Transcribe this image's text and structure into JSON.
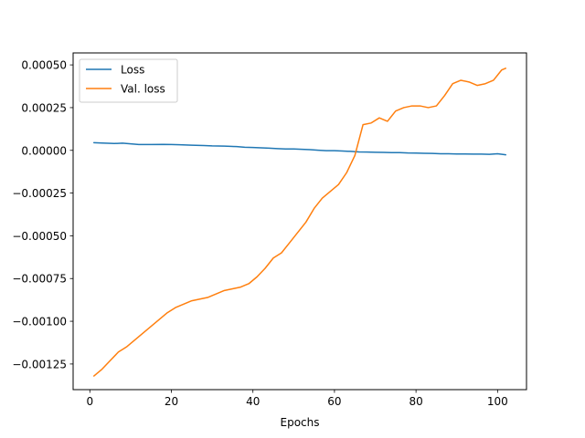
{
  "chart_data": {
    "type": "line",
    "title": "",
    "xlabel": "Epochs",
    "ylabel": "",
    "xlim": [
      -4.1,
      107.1
    ],
    "ylim": [
      -0.0014,
      0.00057
    ],
    "x_ticks": [
      0,
      20,
      40,
      60,
      80,
      100
    ],
    "x_tick_labels": [
      "0",
      "20",
      "40",
      "60",
      "80",
      "100"
    ],
    "y_ticks": [
      -0.00125,
      -0.001,
      -0.00075,
      -0.0005,
      -0.00025,
      0.0,
      0.00025,
      0.0005
    ],
    "y_tick_labels": [
      "−0.00125",
      "−0.00100",
      "−0.00075",
      "−0.00050",
      "−0.00025",
      "0.00000",
      "0.00025",
      "0.00050"
    ],
    "grid": false,
    "legend_position": "upper left",
    "series": [
      {
        "name": "Loss",
        "color": "#1f77b4",
        "points": [
          [
            1,
            4.5e-05
          ],
          [
            3,
            4.3e-05
          ],
          [
            6,
            4e-05
          ],
          [
            8,
            4.2e-05
          ],
          [
            10,
            3.8e-05
          ],
          [
            12,
            3.4e-05
          ],
          [
            15,
            3.4e-05
          ],
          [
            18,
            3.5e-05
          ],
          [
            20,
            3.4e-05
          ],
          [
            22,
            3.3e-05
          ],
          [
            25,
            3e-05
          ],
          [
            28,
            2.8e-05
          ],
          [
            30,
            2.6e-05
          ],
          [
            33,
            2.5e-05
          ],
          [
            36,
            2.2e-05
          ],
          [
            38,
            1.8e-05
          ],
          [
            40,
            1.7e-05
          ],
          [
            42,
            1.5e-05
          ],
          [
            44,
            1.3e-05
          ],
          [
            46,
            1e-05
          ],
          [
            48,
            8e-06
          ],
          [
            50,
            8e-06
          ],
          [
            52,
            6e-06
          ],
          [
            54,
            4e-06
          ],
          [
            56,
            1e-06
          ],
          [
            58,
            -2e-06
          ],
          [
            60,
            -2e-06
          ],
          [
            62,
            -4e-06
          ],
          [
            64,
            -6e-06
          ],
          [
            66,
            -9e-06
          ],
          [
            68,
            -1e-05
          ],
          [
            70,
            -1.1e-05
          ],
          [
            72,
            -1.2e-05
          ],
          [
            74,
            -1.3e-05
          ],
          [
            76,
            -1.3e-05
          ],
          [
            78,
            -1.5e-05
          ],
          [
            80,
            -1.6e-05
          ],
          [
            82,
            -1.7e-05
          ],
          [
            84,
            -1.8e-05
          ],
          [
            86,
            -2e-05
          ],
          [
            88,
            -2e-05
          ],
          [
            90,
            -2.1e-05
          ],
          [
            92,
            -2.1e-05
          ],
          [
            94,
            -2.2e-05
          ],
          [
            96,
            -2.2e-05
          ],
          [
            98,
            -2.3e-05
          ],
          [
            100,
            -2e-05
          ],
          [
            102,
            -2.6e-05
          ]
        ]
      },
      {
        "name": "Val. loss",
        "color": "#ff7f0e",
        "points": [
          [
            1,
            -0.00132
          ],
          [
            3,
            -0.00128
          ],
          [
            5,
            -0.00123
          ],
          [
            7,
            -0.00118
          ],
          [
            9,
            -0.00115
          ],
          [
            11,
            -0.00111
          ],
          [
            13,
            -0.00107
          ],
          [
            15,
            -0.00103
          ],
          [
            17,
            -0.00099
          ],
          [
            19,
            -0.00095
          ],
          [
            21,
            -0.00092
          ],
          [
            23,
            -0.0009
          ],
          [
            25,
            -0.00088
          ],
          [
            27,
            -0.00087
          ],
          [
            29,
            -0.00086
          ],
          [
            31,
            -0.00084
          ],
          [
            33,
            -0.00082
          ],
          [
            35,
            -0.00081
          ],
          [
            37,
            -0.0008
          ],
          [
            39,
            -0.00078
          ],
          [
            41,
            -0.00074
          ],
          [
            43,
            -0.00069
          ],
          [
            45,
            -0.00063
          ],
          [
            47,
            -0.0006
          ],
          [
            49,
            -0.00054
          ],
          [
            51,
            -0.00048
          ],
          [
            53,
            -0.00042
          ],
          [
            55,
            -0.00034
          ],
          [
            57,
            -0.00028
          ],
          [
            59,
            -0.00024
          ],
          [
            61,
            -0.0002
          ],
          [
            63,
            -0.00013
          ],
          [
            65,
            -3e-05
          ],
          [
            67,
            0.00015
          ],
          [
            69,
            0.00016
          ],
          [
            71,
            0.00019
          ],
          [
            73,
            0.00017
          ],
          [
            75,
            0.00023
          ],
          [
            77,
            0.00025
          ],
          [
            79,
            0.00026
          ],
          [
            81,
            0.00026
          ],
          [
            83,
            0.00025
          ],
          [
            85,
            0.00026
          ],
          [
            87,
            0.00032
          ],
          [
            89,
            0.00039
          ],
          [
            91,
            0.00041
          ],
          [
            93,
            0.0004
          ],
          [
            95,
            0.00038
          ],
          [
            97,
            0.00039
          ],
          [
            99,
            0.00041
          ],
          [
            101,
            0.00047
          ],
          [
            102,
            0.00048
          ]
        ]
      }
    ]
  }
}
